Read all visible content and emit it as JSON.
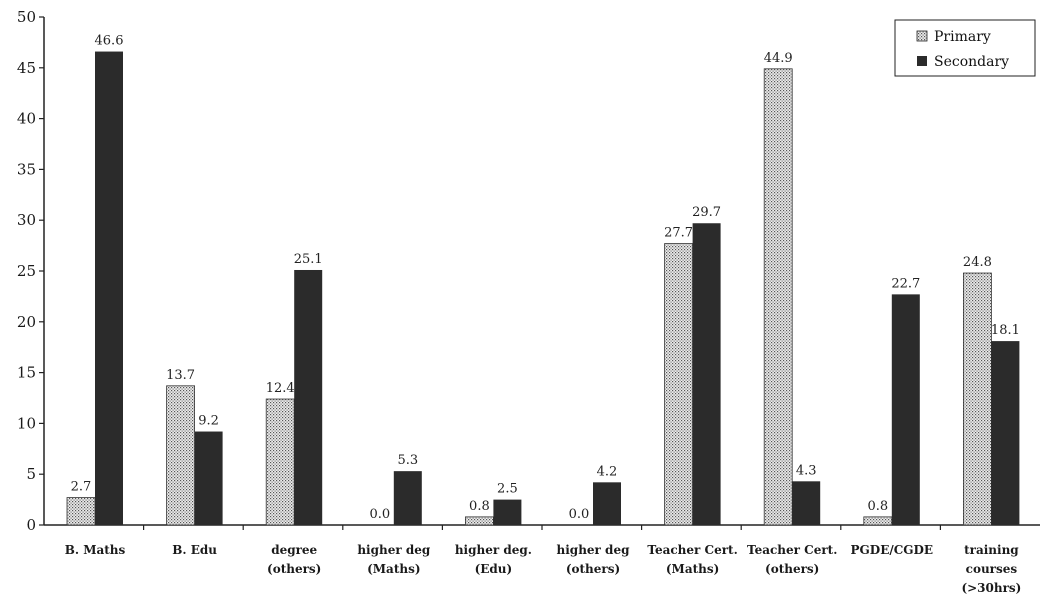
{
  "chart_data": {
    "type": "bar",
    "categories": [
      [
        "B. Maths"
      ],
      [
        "B. Edu"
      ],
      [
        "degree",
        "(others)"
      ],
      [
        "higher deg",
        "(Maths)"
      ],
      [
        "higher deg.",
        "(Edu)"
      ],
      [
        "higher deg",
        "(others)"
      ],
      [
        "Teacher Cert.",
        "(Maths)"
      ],
      [
        "Teacher Cert.",
        "(others)"
      ],
      [
        "PGDE/CGDE"
      ],
      [
        "training",
        "courses",
        "(>30hrs)"
      ]
    ],
    "series": [
      {
        "name": "Primary",
        "pattern": "dotted",
        "values": [
          2.7,
          13.7,
          12.4,
          0.0,
          0.8,
          0.0,
          27.7,
          44.9,
          0.8,
          24.8
        ],
        "labels": [
          "2.7",
          "13.7",
          "12.4",
          "0.0",
          "0.8",
          "0.0",
          "27.7",
          "44.9",
          "0.8",
          "24.8"
        ]
      },
      {
        "name": "Secondary",
        "color": "#2b2b2b",
        "values": [
          46.6,
          9.2,
          25.1,
          5.3,
          2.5,
          4.2,
          29.7,
          4.3,
          22.7,
          18.1
        ],
        "labels": [
          "46.6",
          "9.2",
          "25.1",
          "5.3",
          "2.5",
          "4.2",
          "29.7",
          "4.3",
          "22.7",
          "18.1"
        ]
      }
    ],
    "yticks": [
      "0",
      "5",
      "10",
      "15",
      "20",
      "25",
      "30",
      "35",
      "40",
      "45",
      "50"
    ],
    "ylim": [
      0,
      50
    ],
    "title": "",
    "xlabel": "",
    "ylabel": "",
    "legend": {
      "position": "top-right"
    },
    "grid": false
  }
}
